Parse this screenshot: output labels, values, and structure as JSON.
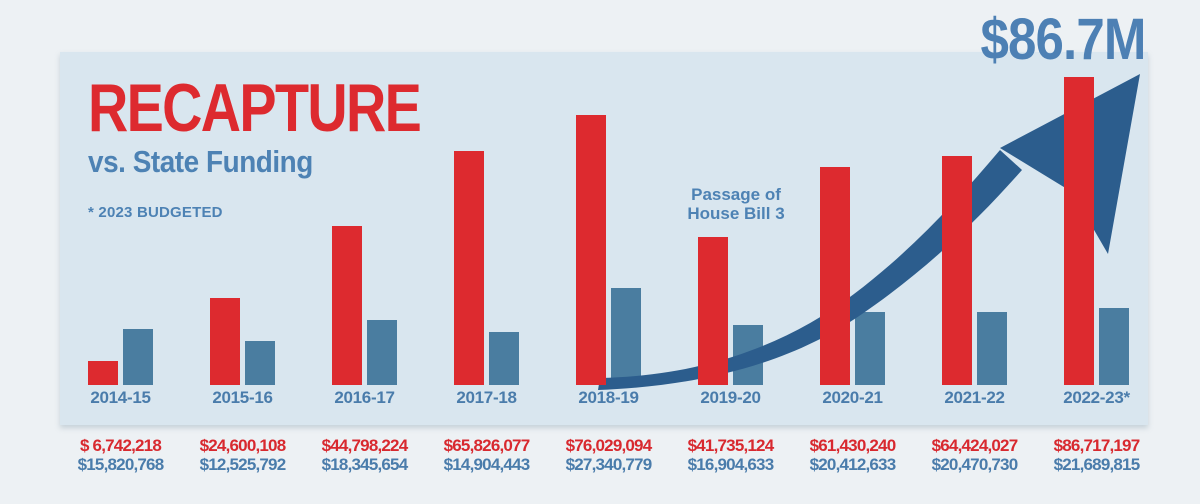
{
  "header": {
    "title": "RECAPTURE",
    "subtitle": "vs. State Funding",
    "note": "* 2023 BUDGETED"
  },
  "callout": {
    "value": "$86.7M"
  },
  "annotation": {
    "line1": "Passage of",
    "line2": "House Bill 3"
  },
  "colors": {
    "recapture_red": "#dd2a2f",
    "state_funding_blue": "#4a7da0",
    "arrow_navy": "#2c5d8d",
    "panel_background": "#d9e6ef",
    "outer_background": "#edf1f4",
    "text_blue": "#4d82b4"
  },
  "chart_data": {
    "type": "bar",
    "title": "RECAPTURE vs. State Funding",
    "categories": [
      "2014-15",
      "2015-16",
      "2016-17",
      "2017-18",
      "2018-19",
      "2019-20",
      "2020-21",
      "2021-22",
      "2022-23*"
    ],
    "series": [
      {
        "name": "Recapture",
        "color": "#dd2a2f",
        "values": [
          6742218,
          24600108,
          44798224,
          65826077,
          76029094,
          41735124,
          61430240,
          64424027,
          86717197
        ],
        "labels": [
          "$ 6,742,218",
          "$24,600,108",
          "$44,798,224",
          "$65,826,077",
          "$76,029,094",
          "$41,735,124",
          "$61,430,240",
          "$64,424,027",
          "$86,717,197"
        ]
      },
      {
        "name": "State Funding",
        "color": "#4a7da0",
        "values": [
          15820768,
          12525792,
          18345654,
          14904443,
          27340779,
          16904633,
          20412633,
          20470730,
          21689815
        ],
        "labels": [
          "$15,820,768",
          "$12,525,792",
          "$18,345,654",
          "$14,904,443",
          "$27,340,779",
          "$16,904,633",
          "$20,412,633",
          "$20,470,730",
          "$21,689,815"
        ]
      }
    ],
    "ylim": [
      0,
      86717197
    ],
    "grid": "off",
    "legend": "none",
    "annotations": [
      "Passage of House Bill 3 (between 2019-20 and 2020-21)",
      "$86.7M callout at top right",
      "* 2023 BUDGETED",
      "upward navy swoosh arrow from 2018-19 baseline to top right"
    ]
  }
}
